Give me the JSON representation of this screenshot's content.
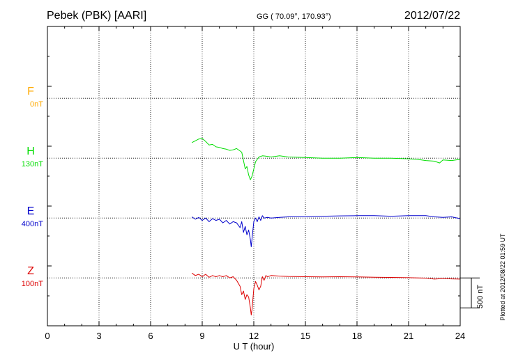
{
  "header": {
    "station": "Pebek (PBK)  [AARI]",
    "coords": "GG ( 70.09°, 170.93°)",
    "date": "2012/07/22"
  },
  "footer": {
    "plotted": "Plotted at 2012/08/22 01:59 UT"
  },
  "chart_data": {
    "type": "line",
    "xlabel": "U T (hour)",
    "xlim": [
      0,
      24
    ],
    "xticks": [
      0,
      3,
      6,
      9,
      12,
      15,
      18,
      21,
      24
    ],
    "ylim": [
      0,
      2500
    ],
    "scale_bar": {
      "label": "500 nT",
      "value": 500
    },
    "colors": {
      "F": "#ffaa00",
      "H": "#00dd00",
      "E": "#0000cc",
      "Z": "#dd0000"
    },
    "series": [
      {
        "name": "F",
        "offset_label": "0nT",
        "baseline": 1900,
        "color": "#ffaa00",
        "x": [],
        "y": []
      },
      {
        "name": "H",
        "offset_label": "130nT",
        "baseline": 1400,
        "color": "#00dd00",
        "x": [
          8.4,
          8.6,
          8.8,
          9.0,
          9.2,
          9.4,
          9.6,
          9.8,
          10.0,
          10.2,
          10.4,
          10.6,
          10.8,
          11.0,
          11.2,
          11.3,
          11.4,
          11.5,
          11.6,
          11.7,
          11.8,
          11.9,
          12.0,
          12.1,
          12.2,
          12.3,
          12.5,
          12.8,
          13.0,
          13.5,
          14.0,
          15.0,
          16.0,
          17.0,
          18.0,
          19.0,
          20.0,
          21.0,
          21.5,
          22.0,
          22.5,
          22.8,
          23.0,
          23.5,
          24.0
        ],
        "y": [
          1530,
          1545,
          1560,
          1565,
          1540,
          1510,
          1515,
          1495,
          1490,
          1480,
          1475,
          1465,
          1470,
          1480,
          1460,
          1450,
          1380,
          1310,
          1330,
          1260,
          1220,
          1250,
          1310,
          1370,
          1390,
          1410,
          1420,
          1415,
          1410,
          1420,
          1410,
          1405,
          1400,
          1400,
          1405,
          1400,
          1400,
          1395,
          1390,
          1380,
          1375,
          1360,
          1385,
          1380,
          1390
        ]
      },
      {
        "name": "E",
        "offset_label": "400nT",
        "baseline": 900,
        "color": "#0000cc",
        "x": [
          8.4,
          8.6,
          8.8,
          9.0,
          9.2,
          9.4,
          9.6,
          9.8,
          10.0,
          10.2,
          10.4,
          10.6,
          10.8,
          11.0,
          11.2,
          11.3,
          11.4,
          11.5,
          11.6,
          11.7,
          11.8,
          11.85,
          11.9,
          12.0,
          12.1,
          12.2,
          12.3,
          12.4,
          12.5,
          12.6,
          12.8,
          13.0,
          13.5,
          14.0,
          15.0,
          16.0,
          17.0,
          18.0,
          19.0,
          20.0,
          21.0,
          22.0,
          22.5,
          23.0,
          23.5,
          24.0
        ],
        "y": [
          910,
          890,
          905,
          880,
          900,
          870,
          895,
          880,
          890,
          860,
          880,
          850,
          870,
          860,
          820,
          870,
          780,
          830,
          760,
          800,
          720,
          660,
          730,
          870,
          900,
          870,
          910,
          880,
          920,
          900,
          905,
          900,
          905,
          910,
          910,
          915,
          918,
          920,
          920,
          915,
          920,
          920,
          910,
          905,
          910,
          895
        ]
      },
      {
        "name": "Z",
        "offset_label": "100nT",
        "baseline": 400,
        "color": "#dd0000",
        "x": [
          8.4,
          8.6,
          8.8,
          9.0,
          9.2,
          9.4,
          9.6,
          9.8,
          10.0,
          10.2,
          10.4,
          10.6,
          10.8,
          11.0,
          11.2,
          11.3,
          11.4,
          11.5,
          11.6,
          11.7,
          11.8,
          11.85,
          11.9,
          12.0,
          12.1,
          12.2,
          12.3,
          12.4,
          12.5,
          12.6,
          12.7,
          12.8,
          13.0,
          13.5,
          14.0,
          15.0,
          16.0,
          17.0,
          18.0,
          19.0,
          20.0,
          21.0,
          22.0,
          22.5,
          23.0,
          23.5,
          24.0
        ],
        "y": [
          440,
          420,
          430,
          410,
          430,
          405,
          420,
          410,
          420,
          410,
          420,
          400,
          410,
          380,
          330,
          260,
          290,
          220,
          260,
          240,
          150,
          90,
          140,
          310,
          370,
          340,
          300,
          330,
          410,
          380,
          420,
          410,
          420,
          415,
          412,
          410,
          408,
          410,
          408,
          406,
          404,
          402,
          398,
          390,
          395,
          392,
          390
        ]
      }
    ]
  }
}
